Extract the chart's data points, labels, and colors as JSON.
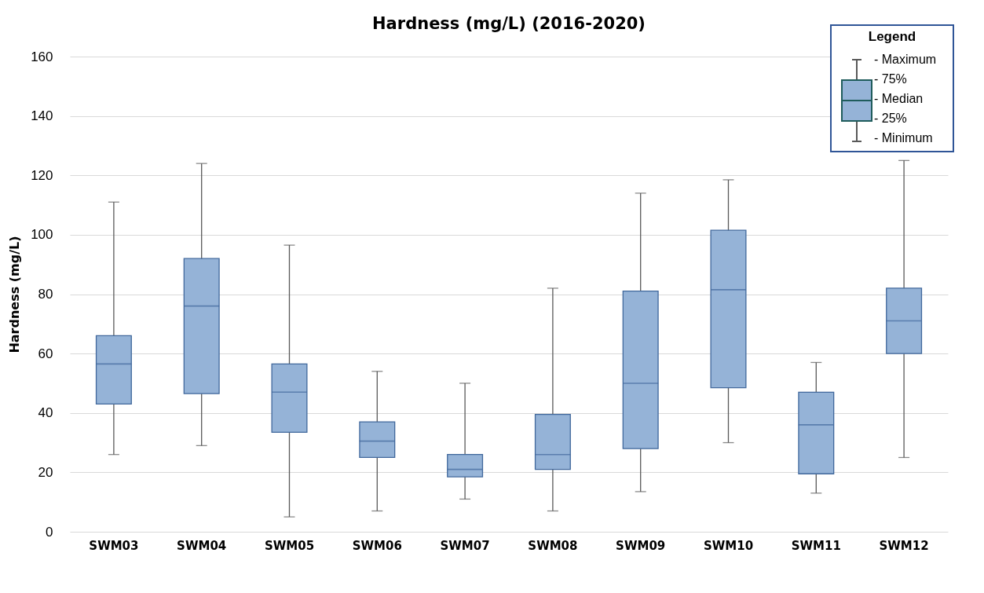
{
  "chart_data": {
    "type": "box",
    "title": "Hardness (mg/L) (2016-2020)",
    "ylabel": "Hardness (mg/L)",
    "categories": [
      "SWM03",
      "SWM04",
      "SWM05",
      "SWM06",
      "SWM07",
      "SWM08",
      "SWM09",
      "SWM10",
      "SWM11",
      "SWM12"
    ],
    "series": [
      {
        "color": "#95b3d7",
        "boxes": [
          {
            "low": 26,
            "q1": 43,
            "median": 56.5,
            "q3": 66,
            "high": 111
          },
          {
            "low": 29,
            "q1": 46.5,
            "median": 76,
            "q3": 92,
            "high": 124
          },
          {
            "low": 5,
            "q1": 33.5,
            "median": 47,
            "q3": 56.5,
            "high": 96.5
          },
          {
            "low": 7,
            "q1": 25,
            "median": 30.5,
            "q3": 37,
            "high": 54
          },
          {
            "low": 11,
            "q1": 18.5,
            "median": 21,
            "q3": 26,
            "high": 50
          },
          {
            "low": 7,
            "q1": 21,
            "median": 26,
            "q3": 39.5,
            "high": 82
          },
          {
            "low": 13.5,
            "q1": 28,
            "median": 50,
            "q3": 81,
            "high": 114
          },
          {
            "low": 30,
            "q1": 48.5,
            "median": 81.5,
            "q3": 101.5,
            "high": 118.5
          },
          {
            "low": 13,
            "q1": 19.5,
            "median": 36,
            "q3": 47,
            "high": 57
          },
          {
            "low": 25,
            "q1": 60,
            "median": 71,
            "q3": 82,
            "high": 125
          }
        ]
      }
    ],
    "ylim": [
      0,
      160
    ],
    "yticks": [
      0,
      20,
      40,
      60,
      80,
      100,
      120,
      140,
      160
    ],
    "grid": "y",
    "legend_title": "Legend",
    "annotations": [
      "- Maximum",
      "- 75%",
      "- Median",
      "- 25%",
      "- Minimum"
    ]
  }
}
